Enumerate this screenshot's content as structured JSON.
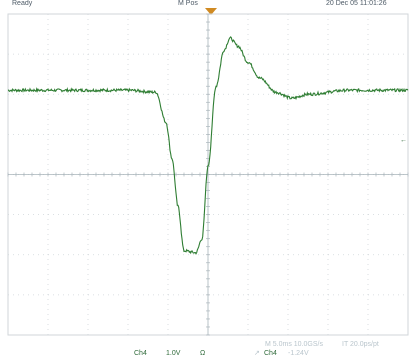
{
  "chart_data": {
    "type": "line",
    "title": "",
    "xlabel": "",
    "ylabel": "",
    "grid": true,
    "x_divisions": 10,
    "y_divisions": 8,
    "x_range_div": [
      0,
      10
    ],
    "y_range_div": [
      -4,
      4
    ],
    "series": [
      {
        "x_div": [
          0,
          3.0,
          3.7,
          3.95,
          4.1,
          4.25,
          4.4,
          4.7,
          4.85,
          5.0,
          5.2,
          5.4,
          5.55,
          5.75,
          6.0,
          6.3,
          6.7,
          7.1,
          7.5,
          8.5,
          10.0
        ],
        "y_div": [
          2.1,
          2.1,
          2.05,
          1.3,
          0.4,
          -0.8,
          -1.9,
          -1.95,
          -1.6,
          0.2,
          2.2,
          3.1,
          3.4,
          3.2,
          2.8,
          2.4,
          2.05,
          1.9,
          2.0,
          2.1,
          2.1
        ]
      }
    ],
    "trace_color": "#2e7d32"
  },
  "readouts": {
    "top_left": "Ready",
    "top_center": "M Pos",
    "top_right": "20 Dec 05 11:01:26",
    "channel": "Ch4",
    "volts_per_div": "1.0V",
    "coupling": "Ω",
    "timebase": "M 5.0ms 10.0GS/s",
    "record": "IT 20.0ps/pt",
    "trigger_channel": "Ch4",
    "trigger_level": "-1.24V"
  },
  "markers": {
    "trigger_marker_color": "#d08a22",
    "level_marker": "←"
  }
}
